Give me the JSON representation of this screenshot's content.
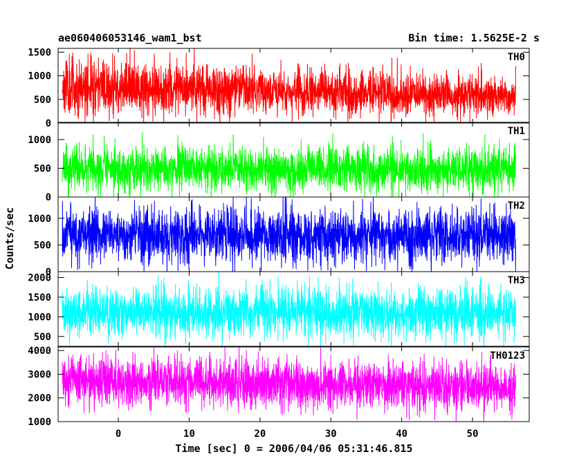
{
  "header": {
    "title": "ae060406053146_wam1_bst",
    "bin_time": "Bin time: 1.5625E-2 s"
  },
  "chart_data": {
    "type": "line",
    "xlabel": "Time [sec] 0 = 2006/04/06 05:31:46.815",
    "ylabel": "Counts/sec",
    "xlim": [
      -8.5,
      58
    ],
    "x_ticks": [
      0,
      10,
      20,
      30,
      40,
      50
    ],
    "x_tick_labels": [
      "0",
      "10",
      "20",
      "30",
      "40",
      "50"
    ],
    "data_x_range": [
      -7.9,
      56.1
    ],
    "bin_time_s": 0.015625,
    "grid": false,
    "legend": "none",
    "panels": [
      {
        "label": "TH0",
        "color": "#ff0000",
        "ylim": [
          0,
          1580
        ],
        "y_ticks": [
          0,
          500,
          1000,
          1500
        ],
        "y_tick_labels": [
          "0",
          "500",
          "1000",
          "1500"
        ],
        "baseline_start": 780,
        "baseline_end": 560,
        "noise_start": 300,
        "noise_end": 200,
        "seed": 11
      },
      {
        "label": "TH1",
        "color": "#00ff00",
        "ylim": [
          0,
          1300
        ],
        "y_ticks": [
          0,
          500,
          1000
        ],
        "y_tick_labels": [
          "0",
          "500",
          "1000"
        ],
        "baseline_start": 480,
        "baseline_end": 470,
        "noise_start": 190,
        "noise_end": 190,
        "seed": 23
      },
      {
        "label": "TH2",
        "color": "#0000ff",
        "ylim": [
          0,
          1400
        ],
        "y_ticks": [
          0,
          500,
          1000
        ],
        "y_tick_labels": [
          "0",
          "500",
          "1000"
        ],
        "baseline_start": 680,
        "baseline_end": 660,
        "noise_start": 260,
        "noise_end": 250,
        "seed": 37
      },
      {
        "label": "TH3",
        "color": "#00ffff",
        "ylim": [
          250,
          2150
        ],
        "y_ticks": [
          500,
          1000,
          1500,
          2000
        ],
        "y_tick_labels": [
          "500",
          "1000",
          "1500",
          "2000"
        ],
        "baseline_start": 1100,
        "baseline_end": 1100,
        "noise_start": 320,
        "noise_end": 320,
        "seed": 41
      },
      {
        "label": "TH0123",
        "color": "#ff00ff",
        "ylim": [
          1000,
          4150
        ],
        "y_ticks": [
          1000,
          2000,
          3000,
          4000
        ],
        "y_tick_labels": [
          "1000",
          "2000",
          "3000",
          "4000"
        ],
        "baseline_start": 2750,
        "baseline_end": 2450,
        "noise_start": 550,
        "noise_end": 480,
        "seed": 53
      }
    ]
  }
}
